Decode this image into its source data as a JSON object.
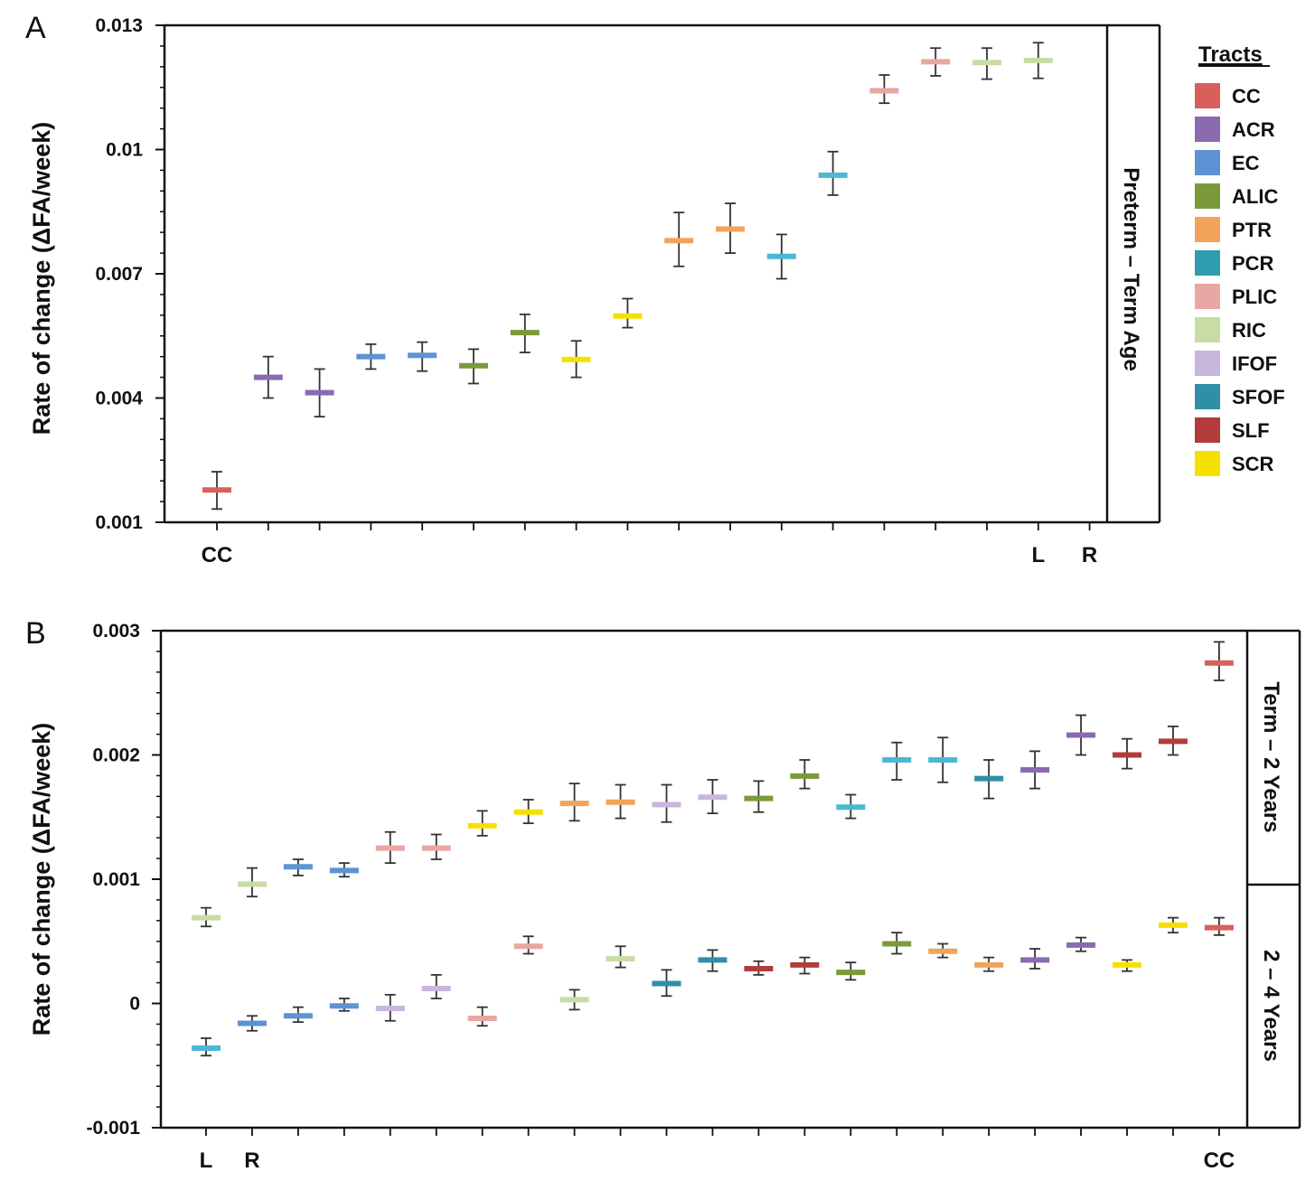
{
  "colors": {
    "CC": "#d9605a",
    "ACR": "#8a6bb0",
    "EC": "#5b93d3",
    "ALIC": "#7a9a3a",
    "PTR": "#f1a35a",
    "PCR": "#2f9db0",
    "PLIC": "#e8a7a2",
    "RIC": "#c9dca5",
    "IFOF": "#c8b6dc",
    "SFOF": "#2f8fa6",
    "SLF": "#b23b3b",
    "SCR": "#f5e000",
    "PCR_light": "#4cb8d4"
  },
  "legend": {
    "title": "Tracts",
    "items": [
      "CC",
      "ACR",
      "EC",
      "ALIC",
      "PTR",
      "PCR",
      "PLIC",
      "RIC",
      "IFOF",
      "SFOF",
      "SLF",
      "SCR"
    ]
  },
  "chart_data": [
    {
      "panel": "A",
      "type": "scatter",
      "ylabel": "Rate of change (ΔFA/week)",
      "strip": "Preterm – Term Age",
      "ylim": [
        0.001,
        0.013
      ],
      "ytick_labels": [
        "0.013",
        "0.01",
        "0.007",
        "0.004",
        "0.001"
      ],
      "ytick_values": [
        0.013,
        0.01,
        0.007,
        0.004,
        0.001
      ],
      "category_labels": [
        {
          "index": 0,
          "text": "CC"
        },
        {
          "index": 16,
          "text": "L"
        },
        {
          "index": 17,
          "text": "R"
        }
      ],
      "points": [
        {
          "tract": "CC",
          "color_key": "CC",
          "y": 0.00178,
          "lo": 0.00132,
          "hi": 0.00222
        },
        {
          "tract": "ACR",
          "color_key": "ACR",
          "y": 0.0045,
          "lo": 0.004,
          "hi": 0.005
        },
        {
          "tract": "ACR",
          "color_key": "ACR",
          "y": 0.00413,
          "lo": 0.00355,
          "hi": 0.0047
        },
        {
          "tract": "EC",
          "color_key": "EC",
          "y": 0.005,
          "lo": 0.0047,
          "hi": 0.0053
        },
        {
          "tract": "EC",
          "color_key": "EC",
          "y": 0.00503,
          "lo": 0.00465,
          "hi": 0.00535
        },
        {
          "tract": "ALIC",
          "color_key": "ALIC",
          "y": 0.00478,
          "lo": 0.00435,
          "hi": 0.00518
        },
        {
          "tract": "ALIC",
          "color_key": "ALIC",
          "y": 0.00558,
          "lo": 0.0051,
          "hi": 0.00602
        },
        {
          "tract": "SCR",
          "color_key": "SCR",
          "y": 0.00493,
          "lo": 0.0045,
          "hi": 0.00538
        },
        {
          "tract": "SCR",
          "color_key": "SCR",
          "y": 0.00598,
          "lo": 0.0057,
          "hi": 0.0064
        },
        {
          "tract": "PTR",
          "color_key": "PTR",
          "y": 0.0078,
          "lo": 0.00718,
          "hi": 0.00848
        },
        {
          "tract": "PTR",
          "color_key": "PTR",
          "y": 0.00808,
          "lo": 0.0075,
          "hi": 0.0087
        },
        {
          "tract": "PCR",
          "color_key": "PCR_light",
          "y": 0.00742,
          "lo": 0.00688,
          "hi": 0.00795
        },
        {
          "tract": "PCR",
          "color_key": "PCR_light",
          "y": 0.00938,
          "lo": 0.0089,
          "hi": 0.00995
        },
        {
          "tract": "PLIC",
          "color_key": "PLIC",
          "y": 0.01142,
          "lo": 0.01112,
          "hi": 0.0118
        },
        {
          "tract": "PLIC",
          "color_key": "PLIC",
          "y": 0.01212,
          "lo": 0.01178,
          "hi": 0.01245
        },
        {
          "tract": "RIC",
          "color_key": "RIC",
          "y": 0.0121,
          "lo": 0.0117,
          "hi": 0.01245
        },
        {
          "tract": "RIC",
          "color_key": "RIC",
          "y": 0.01215,
          "lo": 0.01172,
          "hi": 0.01258
        }
      ]
    },
    {
      "panel": "B",
      "type": "scatter",
      "ylabel": "Rate of change (ΔFA/week)",
      "strips": [
        "Term – 2 Years",
        "2 – 4 Years"
      ],
      "ylim": [
        -0.001,
        0.003
      ],
      "ytick_labels": [
        "0.003",
        "0.002",
        "0.001",
        "0",
        "-0.001"
      ],
      "ytick_values": [
        0.003,
        0.002,
        0.001,
        0,
        -0.001
      ],
      "category_labels": [
        {
          "index": 0,
          "text": "L"
        },
        {
          "index": 1,
          "text": "R"
        },
        {
          "index": 22,
          "text": "CC"
        }
      ],
      "series": [
        {
          "name": "Term – 2 Years",
          "points": [
            {
              "color_key": "RIC",
              "y": 0.00069,
              "lo": 0.00062,
              "hi": 0.00077
            },
            {
              "color_key": "RIC",
              "y": 0.00096,
              "lo": 0.00086,
              "hi": 0.00109
            },
            {
              "color_key": "EC",
              "y": 0.0011,
              "lo": 0.00103,
              "hi": 0.00116
            },
            {
              "color_key": "EC",
              "y": 0.00107,
              "lo": 0.00102,
              "hi": 0.00113
            },
            {
              "color_key": "PLIC",
              "y": 0.00125,
              "lo": 0.00113,
              "hi": 0.00138
            },
            {
              "color_key": "PLIC",
              "y": 0.00125,
              "lo": 0.00116,
              "hi": 0.00136
            },
            {
              "color_key": "SCR",
              "y": 0.00143,
              "lo": 0.00135,
              "hi": 0.00155
            },
            {
              "color_key": "SCR",
              "y": 0.00154,
              "lo": 0.00145,
              "hi": 0.00164
            },
            {
              "color_key": "PTR",
              "y": 0.00161,
              "lo": 0.00147,
              "hi": 0.00177
            },
            {
              "color_key": "PTR",
              "y": 0.00162,
              "lo": 0.00149,
              "hi": 0.00176
            },
            {
              "color_key": "IFOF",
              "y": 0.0016,
              "lo": 0.00146,
              "hi": 0.00176
            },
            {
              "color_key": "IFOF",
              "y": 0.00166,
              "lo": 0.00153,
              "hi": 0.0018
            },
            {
              "color_key": "ALIC",
              "y": 0.00165,
              "lo": 0.00154,
              "hi": 0.00179
            },
            {
              "color_key": "ALIC",
              "y": 0.00183,
              "lo": 0.00173,
              "hi": 0.00196
            },
            {
              "color_key": "PCR_light",
              "y": 0.00158,
              "lo": 0.00149,
              "hi": 0.00168
            },
            {
              "color_key": "PCR_light",
              "y": 0.00196,
              "lo": 0.0018,
              "hi": 0.0021
            },
            {
              "color_key": "PCR_light",
              "y": 0.00196,
              "lo": 0.00178,
              "hi": 0.00214
            },
            {
              "color_key": "SFOF",
              "y": 0.00181,
              "lo": 0.00165,
              "hi": 0.00196
            },
            {
              "color_key": "ACR",
              "y": 0.00188,
              "lo": 0.00173,
              "hi": 0.00203
            },
            {
              "color_key": "ACR",
              "y": 0.00216,
              "lo": 0.002,
              "hi": 0.00232
            },
            {
              "color_key": "SLF",
              "y": 0.002,
              "lo": 0.00189,
              "hi": 0.00213
            },
            {
              "color_key": "SLF",
              "y": 0.00211,
              "lo": 0.002,
              "hi": 0.00223
            },
            {
              "color_key": "CC",
              "y": 0.00274,
              "lo": 0.0026,
              "hi": 0.00291
            }
          ]
        },
        {
          "name": "2 – 4 Years",
          "points": [
            {
              "color_key": "PCR_light",
              "y": -0.00036,
              "lo": -0.00042,
              "hi": -0.00028
            },
            {
              "color_key": "EC",
              "y": -0.00016,
              "lo": -0.00022,
              "hi": -0.0001
            },
            {
              "color_key": "EC",
              "y": -0.0001,
              "lo": -0.00015,
              "hi": -3e-05
            },
            {
              "color_key": "EC",
              "y": -2e-05,
              "lo": -6e-05,
              "hi": 4e-05
            },
            {
              "color_key": "IFOF",
              "y": -4e-05,
              "lo": -0.00014,
              "hi": 7e-05
            },
            {
              "color_key": "IFOF",
              "y": 0.00012,
              "lo": 4e-05,
              "hi": 0.00023
            },
            {
              "color_key": "PLIC",
              "y": -0.00012,
              "lo": -0.00018,
              "hi": -3e-05
            },
            {
              "color_key": "PLIC",
              "y": 0.00046,
              "lo": 0.0004,
              "hi": 0.00054
            },
            {
              "color_key": "RIC",
              "y": 3e-05,
              "lo": -5e-05,
              "hi": 0.00011
            },
            {
              "color_key": "RIC",
              "y": 0.00036,
              "lo": 0.00029,
              "hi": 0.00046
            },
            {
              "color_key": "SFOF",
              "y": 0.00016,
              "lo": 6e-05,
              "hi": 0.00027
            },
            {
              "color_key": "SFOF",
              "y": 0.00035,
              "lo": 0.00026,
              "hi": 0.00043
            },
            {
              "color_key": "SLF",
              "y": 0.00028,
              "lo": 0.00023,
              "hi": 0.00034
            },
            {
              "color_key": "SLF",
              "y": 0.00031,
              "lo": 0.00024,
              "hi": 0.00037
            },
            {
              "color_key": "ALIC",
              "y": 0.00025,
              "lo": 0.00019,
              "hi": 0.00033
            },
            {
              "color_key": "ALIC",
              "y": 0.00048,
              "lo": 0.0004,
              "hi": 0.00057
            },
            {
              "color_key": "PTR",
              "y": 0.00042,
              "lo": 0.00037,
              "hi": 0.00048
            },
            {
              "color_key": "PTR",
              "y": 0.00031,
              "lo": 0.00026,
              "hi": 0.00037
            },
            {
              "color_key": "ACR",
              "y": 0.00035,
              "lo": 0.00028,
              "hi": 0.00044
            },
            {
              "color_key": "ACR",
              "y": 0.00047,
              "lo": 0.00042,
              "hi": 0.00053
            },
            {
              "color_key": "SCR",
              "y": 0.00031,
              "lo": 0.00026,
              "hi": 0.00035
            },
            {
              "color_key": "SCR",
              "y": 0.00063,
              "lo": 0.00057,
              "hi": 0.00069
            },
            {
              "color_key": "CC",
              "y": 0.00061,
              "lo": 0.00055,
              "hi": 0.00069
            }
          ]
        }
      ]
    }
  ]
}
